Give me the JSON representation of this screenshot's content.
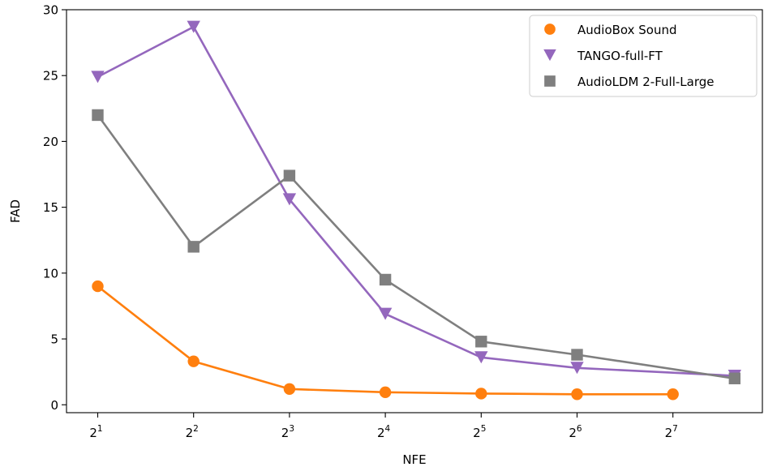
{
  "chart_data": {
    "type": "line",
    "title": "",
    "xlabel": "NFE",
    "ylabel": "FAD",
    "x_scale": "log2",
    "x_ticks": [
      {
        "base": "2",
        "exp": "1"
      },
      {
        "base": "2",
        "exp": "2"
      },
      {
        "base": "2",
        "exp": "3"
      },
      {
        "base": "2",
        "exp": "4"
      },
      {
        "base": "2",
        "exp": "5"
      },
      {
        "base": "2",
        "exp": "6"
      },
      {
        "base": "2",
        "exp": "7"
      }
    ],
    "y_ticks": [
      "0",
      "5",
      "10",
      "15",
      "20",
      "25",
      "30"
    ],
    "ylim": [
      -0.6,
      30
    ],
    "grid": false,
    "legend": "top-right",
    "series": [
      {
        "name": "AudioBox Sound",
        "color": "#ff7f0e",
        "marker": "circle",
        "points": [
          {
            "nfe": 2,
            "fad": 9.0
          },
          {
            "nfe": 4,
            "fad": 3.3
          },
          {
            "nfe": 8,
            "fad": 1.2
          },
          {
            "nfe": 16,
            "fad": 0.95
          },
          {
            "nfe": 32,
            "fad": 0.85
          },
          {
            "nfe": 64,
            "fad": 0.8
          },
          {
            "nfe": 128,
            "fad": 0.8
          }
        ]
      },
      {
        "name": "TANGO-full-FT",
        "color": "#9467bd",
        "marker": "triangle-down",
        "points": [
          {
            "nfe": 2,
            "fad": 24.9
          },
          {
            "nfe": 4,
            "fad": 28.7
          },
          {
            "nfe": 8,
            "fad": 15.6
          },
          {
            "nfe": 16,
            "fad": 6.9
          },
          {
            "nfe": 32,
            "fad": 3.6
          },
          {
            "nfe": 64,
            "fad": 2.8
          },
          {
            "nfe": 200,
            "fad": 2.2
          }
        ]
      },
      {
        "name": "AudioLDM 2-Full-Large",
        "color": "#7f7f7f",
        "marker": "square",
        "points": [
          {
            "nfe": 2,
            "fad": 22.0
          },
          {
            "nfe": 4,
            "fad": 12.0
          },
          {
            "nfe": 8,
            "fad": 17.4
          },
          {
            "nfe": 16,
            "fad": 9.5
          },
          {
            "nfe": 32,
            "fad": 4.8
          },
          {
            "nfe": 64,
            "fad": 3.8
          },
          {
            "nfe": 200,
            "fad": 2.0
          }
        ]
      }
    ]
  }
}
